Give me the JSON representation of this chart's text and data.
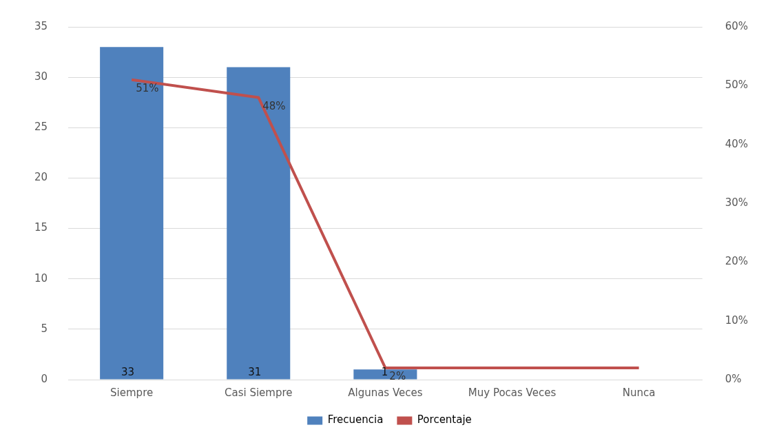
{
  "chart_data": {
    "type": "bar",
    "categories": [
      "Siempre",
      "Casi Siempre",
      "Algunas Veces",
      "Muy Pocas Veces",
      "Nunca"
    ],
    "series": [
      {
        "name": "Frecuencia",
        "color": "#4f81bd",
        "values": [
          33,
          31,
          1,
          0,
          0
        ],
        "value_labels": [
          "33",
          "31",
          "1",
          null,
          null
        ]
      },
      {
        "name": "Porcentaje",
        "type": "line",
        "axis": "y2",
        "color": "#c0504d",
        "values": [
          51,
          48,
          2,
          2,
          2
        ],
        "value_labels": [
          "51%",
          "48%",
          "2%",
          null,
          null
        ]
      }
    ],
    "ylim": [
      0,
      35
    ],
    "yticks": [
      0,
      5,
      10,
      15,
      20,
      25,
      30,
      35
    ],
    "y2lim": [
      0,
      60
    ],
    "y2ticks": [
      {
        "value": 0,
        "label": "0%"
      },
      {
        "value": 10,
        "label": "10%"
      },
      {
        "value": 20,
        "label": "20%"
      },
      {
        "value": 30,
        "label": "30%"
      },
      {
        "value": 40,
        "label": "40%"
      },
      {
        "value": 50,
        "label": "50%"
      },
      {
        "value": 60,
        "label": "60%"
      }
    ],
    "grid": "y",
    "legend": "bottom",
    "marker": "none"
  }
}
